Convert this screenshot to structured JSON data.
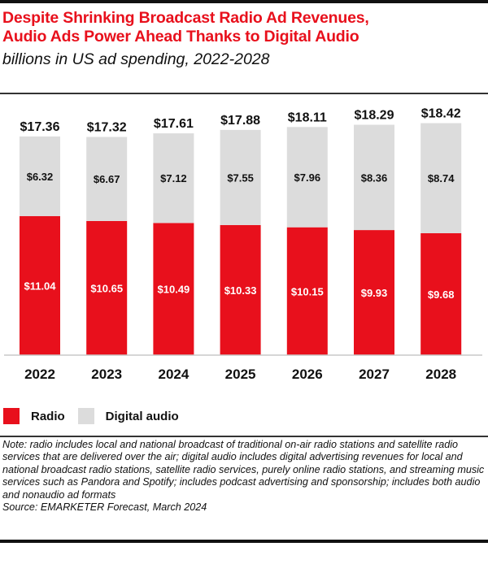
{
  "header": {
    "title_line1": "Despite Shrinking Broadcast Radio Ad Revenues,",
    "title_line2": "Audio Ads Power Ahead Thanks to Digital Audio",
    "subtitle": "billions in US ad spending, 2022-2028"
  },
  "colors": {
    "title": "#e8101c",
    "radio": "#e8101c",
    "digital_audio": "#dcdcdc"
  },
  "legend": [
    {
      "label": "Radio",
      "color": "#e8101c"
    },
    {
      "label": "Digital audio",
      "color": "#dcdcdc"
    }
  ],
  "footer": {
    "note": "Note: radio includes local and national broadcast of traditional on-air radio stations and satellite radio services that are delivered over the air; digital audio includes digital advertising revenues for local and national broadcast radio stations, satellite radio services, purely online radio stations, and streaming music services such as Pandora and Spotify; includes podcast advertising and sponsorship; includes both audio and nonaudio ad formats",
    "source": "Source: EMARKETER Forecast, March 2024"
  },
  "chart_data": {
    "type": "bar",
    "stacked": true,
    "title": "Despite Shrinking Broadcast Radio Ad Revenues, Audio Ads Power Ahead Thanks to Digital Audio",
    "subtitle": "billions in US ad spending, 2022-2028",
    "xlabel": "",
    "ylabel": "",
    "categories": [
      "2022",
      "2023",
      "2024",
      "2025",
      "2026",
      "2027",
      "2028"
    ],
    "series": [
      {
        "name": "Radio",
        "color": "#e8101c",
        "values": [
          11.04,
          10.65,
          10.49,
          10.33,
          10.15,
          9.93,
          9.68
        ],
        "labels": [
          "$11.04",
          "$10.65",
          "$10.49",
          "$10.33",
          "$10.15",
          "$9.93",
          "$9.68"
        ]
      },
      {
        "name": "Digital audio",
        "color": "#dcdcdc",
        "values": [
          6.32,
          6.67,
          7.12,
          7.55,
          7.96,
          8.36,
          8.74
        ],
        "labels": [
          "$6.32",
          "$6.67",
          "$7.12",
          "$7.55",
          "$7.96",
          "$8.36",
          "$8.74"
        ]
      }
    ],
    "totals": [
      17.36,
      17.32,
      17.61,
      17.88,
      18.11,
      18.29,
      18.42
    ],
    "total_labels": [
      "$17.36",
      "$17.32",
      "$17.61",
      "$17.88",
      "$18.11",
      "$18.29",
      "$18.42"
    ],
    "ylim": [
      0,
      20
    ],
    "grid": false,
    "y_axis_visible": false,
    "legend_position": "bottom-left"
  }
}
